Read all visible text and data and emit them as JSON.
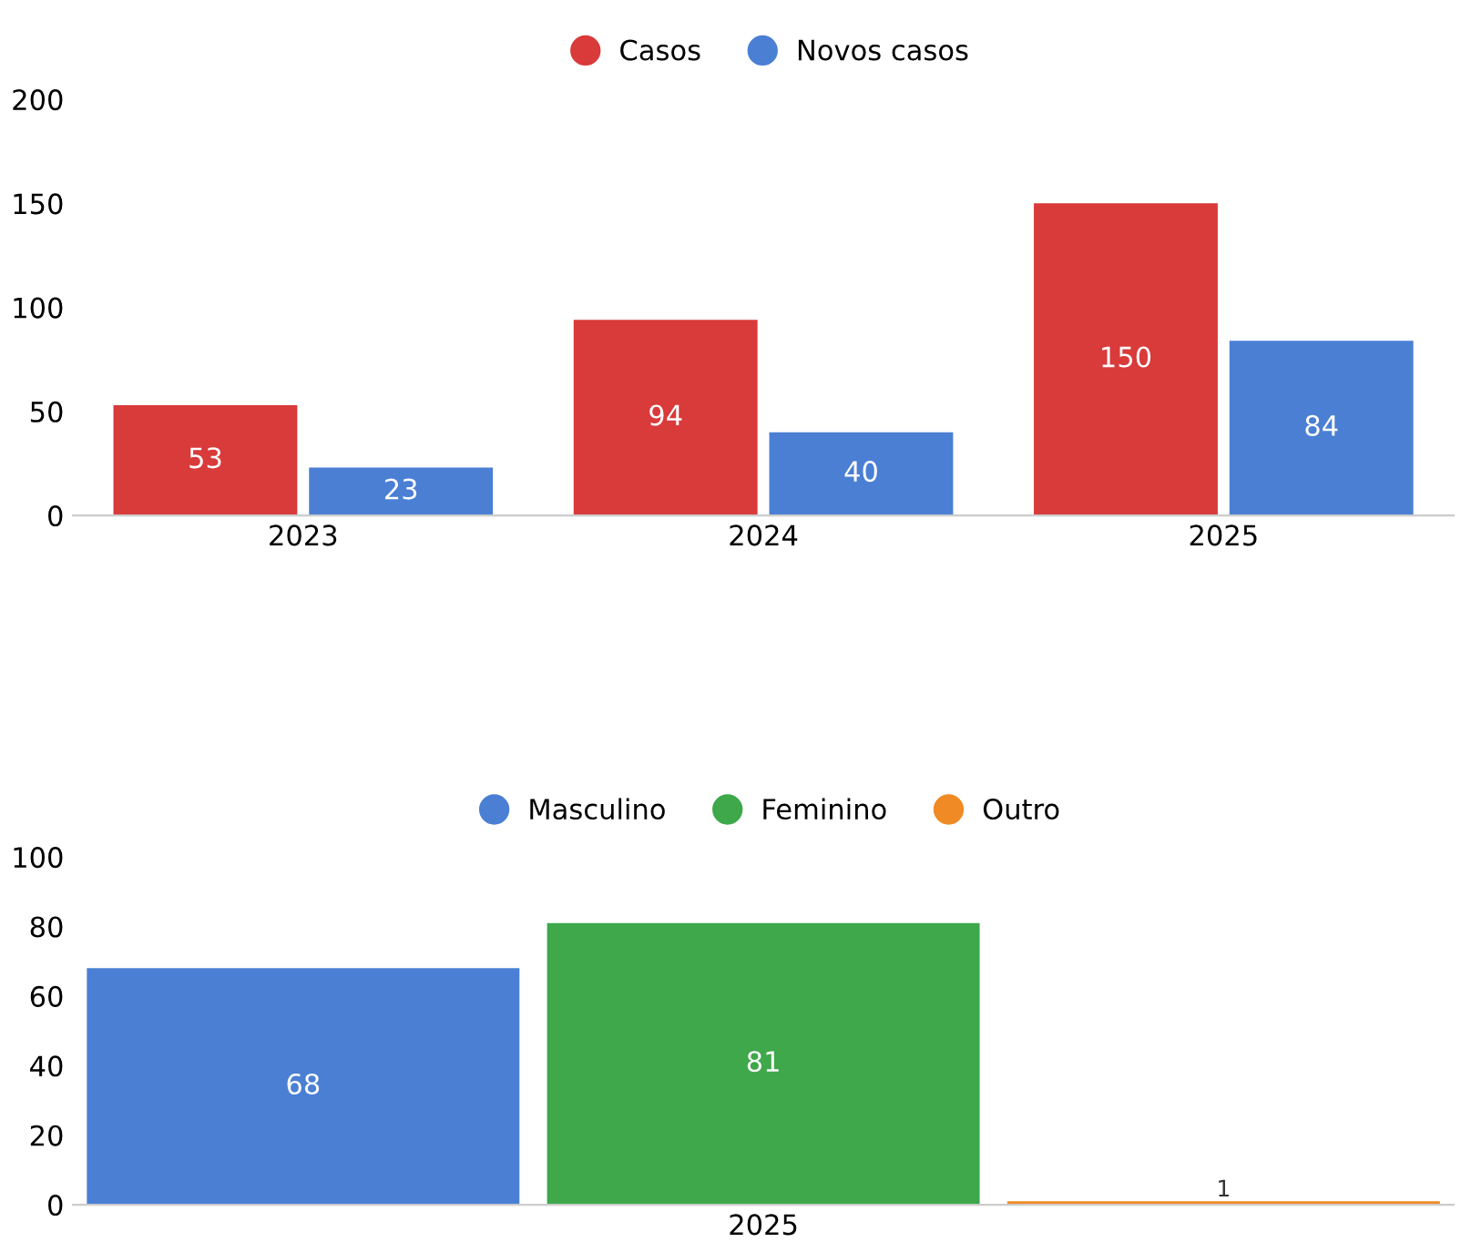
{
  "chart_data": [
    {
      "type": "bar",
      "categories": [
        "2023",
        "2024",
        "2025"
      ],
      "series": [
        {
          "name": "Casos",
          "color": "#d93a3a",
          "values": [
            53,
            94,
            150
          ]
        },
        {
          "name": "Novos casos",
          "color": "#4a7fd4",
          "values": [
            23,
            40,
            84
          ]
        }
      ],
      "ylim": [
        0,
        200
      ],
      "yticks": [
        0,
        50,
        100,
        150,
        200
      ],
      "legend": "top",
      "data_labels": true
    },
    {
      "type": "bar",
      "categories": [
        "2025"
      ],
      "series": [
        {
          "name": "Masculino",
          "color": "#4a7fd4",
          "values": [
            68
          ]
        },
        {
          "name": "Feminino",
          "color": "#3ea84a",
          "values": [
            81
          ]
        },
        {
          "name": "Outro",
          "color": "#f08a24",
          "values": [
            1
          ]
        }
      ],
      "ylim": [
        0,
        100
      ],
      "yticks": [
        0,
        20,
        40,
        60,
        80,
        100
      ],
      "legend": "top",
      "data_labels": true
    }
  ]
}
